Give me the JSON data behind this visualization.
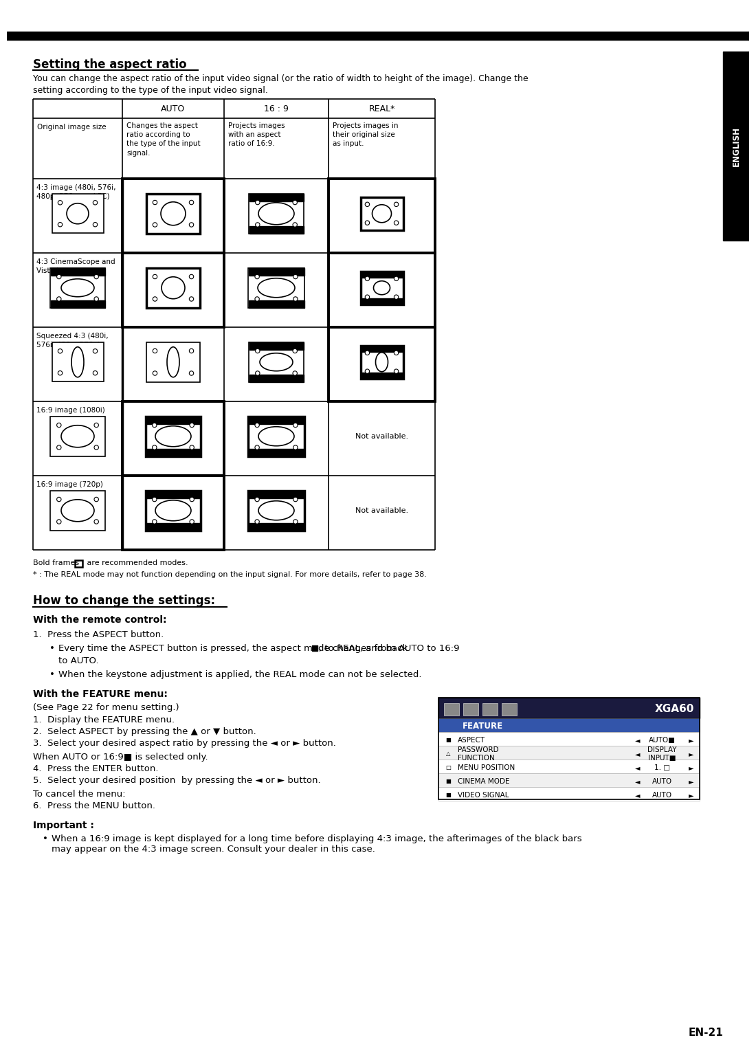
{
  "title": "Setting the aspect ratio",
  "intro_line1": "You can change the aspect ratio of the input video signal (or the ratio of width to height of the image). Change the",
  "intro_line2": "setting according to the type of the input video signal.",
  "col_headers": [
    "AUTO",
    "16 : 9",
    "REAL*"
  ],
  "row0_label": "Original image size",
  "row0_col1": "Changes the aspect\nratio according to\nthe type of the input\nsignal.",
  "row0_col2": "Projects images\nwith an aspect\nratio of 16:9.",
  "row0_col3": "Projects images in\ntheir original size\nas input.",
  "row_labels": [
    "4:3 image (480i, 576i,\n480p, 576p, and PC)",
    "4:3 CinemaScope and\nVista image",
    "Squeezed 4:3 (480i,\n576i, 480p, 576p)",
    "16:9 image (1080i)",
    "16:9 image (720p)"
  ],
  "bold_note_pre": "Bold frames ",
  "bold_note_post": " are recommended modes.",
  "star_note": "* : The REAL mode may not function depending on the input signal. For more details, refer to page 38.",
  "sec2_title": "How to change the settings:",
  "sub1": "With the remote control:",
  "step1": "1.  Press the ASPECT button.",
  "bullet1a": "Every time the ASPECT button is pressed, the aspect mode changes from AUTO to 16:9",
  "bullet1b": ", to REAL, and back",
  "bullet1c": "to AUTO.",
  "bullet2": "When the keystone adjustment is applied, the REAL mode can not be selected.",
  "sub2": "With the FEATURE menu:",
  "feature_note": "(See Page 22 for menu setting.)",
  "fstep1": "1.  Display the FEATURE menu.",
  "fstep2": "2.  Select ASPECT by pressing the ▲ or ▼ button.",
  "fstep3": "3.  Select your desired aspect ratio by pressing the ◄ or ► button.",
  "when_auto": "When AUTO or 16:9■ is selected only.",
  "fstep4": "4.  Press the ENTER button.",
  "fstep5": "5.  Select your desired position  by pressing the ◄ or ► button.",
  "cancel": "To cancel the menu:",
  "fstep6": "6.  Press the MENU button.",
  "important": "Important :",
  "imp_text": "When a 16:9 image is kept displayed for a long time before displaying 4:3 image, the afterimages of the black bars\nmay appear on the 4:3 image screen. Consult your dealer in this case.",
  "page": "EN-21",
  "not_available": "Not available.",
  "menu_title": "XGA60",
  "menu_feature": "FEATURE",
  "menu_rows": [
    [
      "ASPECT",
      "AUTO■"
    ],
    [
      "PASSWORD\nFUNCTION",
      "DISPLAY\nINPUT■"
    ],
    [
      "MENU POSITION",
      "1. □"
    ],
    [
      "CINEMA MODE",
      "AUTO"
    ],
    [
      "VIDEO SIGNAL",
      "AUTO"
    ]
  ]
}
